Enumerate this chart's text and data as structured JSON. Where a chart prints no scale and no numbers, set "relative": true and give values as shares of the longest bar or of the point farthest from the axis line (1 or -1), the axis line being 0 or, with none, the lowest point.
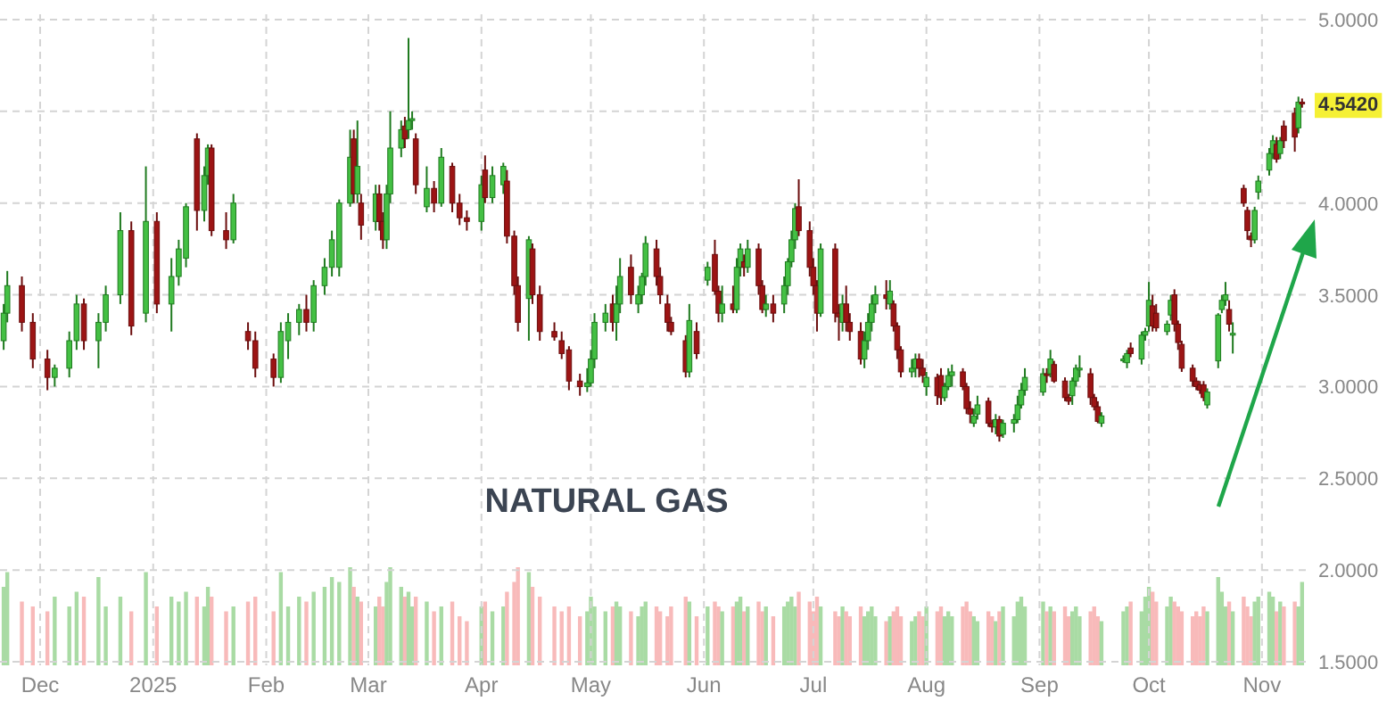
{
  "chart_data": [
    {
      "type": "candlestick",
      "x": [
        "2024-11-21",
        "2024-11-22",
        "2024-11-26",
        "2024-11-29",
        "2024-12-03",
        "2024-12-05",
        "2024-12-09",
        "2024-12-11",
        "2024-12-13",
        "2024-12-17",
        "2024-12-19",
        "2024-12-23",
        "2024-12-26",
        "2024-12-30",
        "2025-01-02",
        "2025-01-06",
        "2025-01-08",
        "2025-01-10",
        "2025-01-13",
        "2025-01-15",
        "2025-01-16",
        "2025-01-17",
        "2025-01-21",
        "2025-01-23",
        "2025-01-27",
        "2025-01-29",
        "2025-02-03",
        "2025-02-05",
        "2025-02-07",
        "2025-02-10",
        "2025-02-12",
        "2025-02-14",
        "2025-02-17",
        "2025-02-19",
        "2025-02-21",
        "2025-02-24",
        "2025-02-25",
        "2025-02-26",
        "2025-02-27",
        "2025-03-03",
        "2025-03-04",
        "2025-03-05",
        "2025-03-06",
        "2025-03-07",
        "2025-03-10",
        "2025-03-11",
        "2025-03-12",
        "2025-03-13",
        "2025-03-14",
        "2025-03-17",
        "2025-03-19",
        "2025-03-21",
        "2025-03-24",
        "2025-03-26",
        "2025-03-28",
        "2025-04-01",
        "2025-04-02",
        "2025-04-04",
        "2025-04-07",
        "2025-04-08",
        "2025-04-10",
        "2025-04-11",
        "2025-04-14",
        "2025-04-15",
        "2025-04-17",
        "2025-04-21",
        "2025-04-23",
        "2025-04-25",
        "2025-04-28",
        "2025-04-30",
        "2025-05-01",
        "2025-05-02",
        "2025-05-05",
        "2025-05-07",
        "2025-05-08",
        "2025-05-09",
        "2025-05-12",
        "2025-05-14",
        "2025-05-15",
        "2025-05-16",
        "2025-05-19",
        "2025-05-20",
        "2025-05-22",
        "2025-05-23",
        "2025-05-27",
        "2025-05-28",
        "2025-05-30",
        "2025-06-02",
        "2025-06-04",
        "2025-06-05",
        "2025-06-06",
        "2025-06-09",
        "2025-06-10",
        "2025-06-11",
        "2025-06-12",
        "2025-06-13",
        "2025-06-16",
        "2025-06-17",
        "2025-06-18",
        "2025-06-20",
        "2025-06-23",
        "2025-06-24",
        "2025-06-25",
        "2025-06-26",
        "2025-06-27",
        "2025-06-30",
        "2025-07-01",
        "2025-07-02",
        "2025-07-03",
        "2025-07-07",
        "2025-07-08",
        "2025-07-09",
        "2025-07-10",
        "2025-07-11",
        "2025-07-14",
        "2025-07-15",
        "2025-07-16",
        "2025-07-17",
        "2025-07-18",
        "2025-07-21",
        "2025-07-22",
        "2025-07-23",
        "2025-07-24",
        "2025-07-25",
        "2025-07-28",
        "2025-07-29",
        "2025-07-30",
        "2025-07-31",
        "2025-08-01",
        "2025-08-04",
        "2025-08-05",
        "2025-08-06",
        "2025-08-07",
        "2025-08-08",
        "2025-08-11",
        "2025-08-12",
        "2025-08-13",
        "2025-08-14",
        "2025-08-15",
        "2025-08-18",
        "2025-08-19",
        "2025-08-20",
        "2025-08-21",
        "2025-08-22",
        "2025-08-25",
        "2025-08-26",
        "2025-08-27",
        "2025-08-28",
        "2025-09-02",
        "2025-09-03",
        "2025-09-04",
        "2025-09-05",
        "2025-09-08",
        "2025-09-09",
        "2025-09-10",
        "2025-09-11",
        "2025-09-12",
        "2025-09-15",
        "2025-09-16",
        "2025-09-17",
        "2025-09-18",
        "2025-09-24",
        "2025-09-25",
        "2025-09-26",
        "2025-09-29",
        "2025-09-30",
        "2025-10-01",
        "2025-10-02",
        "2025-10-03",
        "2025-10-06",
        "2025-10-07",
        "2025-10-08",
        "2025-10-09",
        "2025-10-10",
        "2025-10-13",
        "2025-10-14",
        "2025-10-15",
        "2025-10-16",
        "2025-10-17",
        "2025-10-20",
        "2025-10-21",
        "2025-10-22",
        "2025-10-23",
        "2025-10-24",
        "2025-10-27",
        "2025-10-28",
        "2025-10-29",
        "2025-10-30",
        "2025-10-31",
        "2025-11-03",
        "2025-11-04",
        "2025-11-05",
        "2025-11-06",
        "2025-11-07",
        "2025-11-10",
        "2025-11-11",
        "2025-11-12"
      ],
      "ohlc": [
        [
          3.25,
          3.45,
          3.2,
          3.4
        ],
        [
          3.4,
          3.63,
          3.35,
          3.55
        ],
        [
          3.55,
          3.6,
          3.3,
          3.35
        ],
        [
          3.35,
          3.4,
          3.1,
          3.15
        ],
        [
          3.15,
          3.2,
          2.98,
          3.05
        ],
        [
          3.05,
          3.12,
          3.0,
          3.1
        ],
        [
          3.1,
          3.3,
          3.05,
          3.25
        ],
        [
          3.25,
          3.5,
          3.2,
          3.45
        ],
        [
          3.45,
          3.48,
          3.2,
          3.25
        ],
        [
          3.25,
          3.4,
          3.1,
          3.35
        ],
        [
          3.35,
          3.55,
          3.3,
          3.5
        ],
        [
          3.5,
          3.95,
          3.45,
          3.85
        ],
        [
          3.85,
          3.9,
          3.28,
          3.33
        ],
        [
          3.4,
          4.2,
          3.35,
          3.9
        ],
        [
          3.9,
          3.95,
          3.4,
          3.45
        ],
        [
          3.45,
          3.7,
          3.3,
          3.6
        ],
        [
          3.6,
          3.8,
          3.55,
          3.75
        ],
        [
          3.7,
          4.0,
          3.65,
          3.98
        ],
        [
          4.35,
          4.38,
          3.85,
          3.96
        ],
        [
          3.96,
          4.2,
          3.9,
          4.15
        ],
        [
          4.15,
          4.32,
          4.1,
          4.3
        ],
        [
          4.3,
          4.32,
          3.82,
          3.85
        ],
        [
          3.85,
          3.95,
          3.75,
          3.8
        ],
        [
          3.8,
          4.05,
          3.78,
          4.0
        ],
        [
          3.3,
          3.35,
          3.2,
          3.25
        ],
        [
          3.25,
          3.3,
          3.05,
          3.1
        ],
        [
          3.15,
          3.18,
          3.0,
          3.05
        ],
        [
          3.05,
          3.35,
          3.02,
          3.3
        ],
        [
          3.25,
          3.4,
          3.15,
          3.35
        ],
        [
          3.35,
          3.45,
          3.28,
          3.42
        ],
        [
          3.42,
          3.5,
          3.3,
          3.35
        ],
        [
          3.35,
          3.58,
          3.3,
          3.55
        ],
        [
          3.55,
          3.7,
          3.5,
          3.65
        ],
        [
          3.65,
          3.85,
          3.6,
          3.8
        ],
        [
          3.65,
          4.02,
          3.6,
          4.0
        ],
        [
          4.0,
          4.4,
          3.98,
          4.25
        ],
        [
          4.35,
          4.4,
          4.0,
          4.05
        ],
        [
          4.05,
          4.45,
          4.0,
          4.2
        ],
        [
          4.0,
          4.05,
          3.8,
          3.88
        ],
        [
          3.9,
          4.1,
          3.85,
          4.05
        ],
        [
          4.05,
          4.1,
          3.85,
          3.9
        ],
        [
          3.9,
          3.95,
          3.75,
          3.8
        ],
        [
          3.8,
          4.1,
          3.75,
          4.05
        ],
        [
          4.05,
          4.5,
          4.0,
          4.3
        ],
        [
          4.3,
          4.45,
          4.25,
          4.4
        ],
        [
          4.42,
          4.47,
          4.3,
          4.35
        ],
        [
          4.4,
          4.9,
          4.35,
          4.45
        ],
        [
          4.45,
          4.5,
          4.4,
          4.46
        ],
        [
          4.35,
          4.38,
          4.05,
          4.1
        ],
        [
          3.98,
          4.2,
          3.95,
          4.08
        ],
        [
          4.08,
          4.12,
          3.95,
          4.0
        ],
        [
          4.0,
          4.3,
          3.98,
          4.25
        ],
        [
          4.2,
          4.22,
          3.95,
          4.0
        ],
        [
          4.0,
          4.05,
          3.88,
          3.92
        ],
        [
          3.92,
          3.96,
          3.85,
          3.9
        ],
        [
          3.9,
          4.15,
          3.85,
          4.1
        ],
        [
          4.18,
          4.26,
          4.0,
          4.03
        ],
        [
          4.03,
          4.2,
          4.0,
          4.15
        ],
        [
          4.1,
          4.22,
          4.05,
          4.2
        ],
        [
          4.12,
          4.18,
          3.78,
          3.82
        ],
        [
          3.82,
          3.85,
          3.5,
          3.55
        ],
        [
          3.55,
          3.6,
          3.3,
          3.35
        ],
        [
          3.48,
          3.82,
          3.25,
          3.8
        ],
        [
          3.75,
          3.78,
          3.45,
          3.5
        ],
        [
          3.5,
          3.55,
          3.25,
          3.3
        ],
        [
          3.3,
          3.35,
          3.25,
          3.27
        ],
        [
          3.25,
          3.3,
          3.15,
          3.18
        ],
        [
          3.2,
          3.22,
          2.98,
          3.03
        ],
        [
          3.03,
          3.07,
          2.95,
          3.0
        ],
        [
          3.0,
          3.1,
          2.97,
          3.02
        ],
        [
          3.02,
          3.2,
          3.0,
          3.15
        ],
        [
          3.15,
          3.4,
          3.1,
          3.35
        ],
        [
          3.35,
          3.45,
          3.3,
          3.4
        ],
        [
          3.45,
          3.5,
          3.3,
          3.35
        ],
        [
          3.35,
          3.55,
          3.25,
          3.45
        ],
        [
          3.45,
          3.7,
          3.4,
          3.6
        ],
        [
          3.65,
          3.72,
          3.45,
          3.5
        ],
        [
          3.45,
          3.55,
          3.4,
          3.5
        ],
        [
          3.5,
          3.62,
          3.45,
          3.6
        ],
        [
          3.6,
          3.82,
          3.55,
          3.78
        ],
        [
          3.75,
          3.8,
          3.55,
          3.6
        ],
        [
          3.6,
          3.65,
          3.45,
          3.5
        ],
        [
          3.45,
          3.5,
          3.3,
          3.35
        ],
        [
          3.35,
          3.38,
          3.28,
          3.3
        ],
        [
          3.25,
          3.28,
          3.05,
          3.08
        ],
        [
          3.08,
          3.45,
          3.05,
          3.36
        ],
        [
          3.3,
          3.35,
          3.15,
          3.18
        ],
        [
          3.58,
          3.68,
          3.55,
          3.65
        ],
        [
          3.72,
          3.8,
          3.5,
          3.52
        ],
        [
          3.52,
          3.55,
          3.35,
          3.4
        ],
        [
          3.4,
          3.55,
          3.35,
          3.45
        ],
        [
          3.45,
          3.55,
          3.4,
          3.42
        ],
        [
          3.42,
          3.7,
          3.4,
          3.65
        ],
        [
          3.65,
          3.78,
          3.6,
          3.75
        ],
        [
          3.68,
          3.72,
          3.6,
          3.65
        ],
        [
          3.65,
          3.8,
          3.62,
          3.75
        ],
        [
          3.75,
          3.78,
          3.5,
          3.55
        ],
        [
          3.55,
          3.58,
          3.4,
          3.42
        ],
        [
          3.42,
          3.5,
          3.38,
          3.45
        ],
        [
          3.45,
          3.5,
          3.35,
          3.4
        ],
        [
          3.45,
          3.6,
          3.4,
          3.55
        ],
        [
          3.55,
          3.7,
          3.5,
          3.68
        ],
        [
          3.68,
          3.85,
          3.65,
          3.8
        ],
        [
          3.8,
          4.0,
          3.75,
          3.97
        ],
        [
          3.98,
          4.13,
          3.82,
          3.85
        ],
        [
          3.85,
          3.9,
          3.6,
          3.65
        ],
        [
          3.65,
          3.7,
          3.5,
          3.55
        ],
        [
          3.55,
          3.58,
          3.3,
          3.4
        ],
        [
          3.4,
          3.78,
          3.38,
          3.75
        ],
        [
          3.75,
          3.78,
          3.35,
          3.4
        ],
        [
          3.4,
          3.45,
          3.25,
          3.38
        ],
        [
          3.35,
          3.5,
          3.3,
          3.45
        ],
        [
          3.45,
          3.55,
          3.3,
          3.35
        ],
        [
          3.35,
          3.4,
          3.25,
          3.3
        ],
        [
          3.3,
          3.35,
          3.12,
          3.15
        ],
        [
          3.15,
          3.3,
          3.1,
          3.25
        ],
        [
          3.25,
          3.4,
          3.2,
          3.35
        ],
        [
          3.35,
          3.5,
          3.3,
          3.45
        ],
        [
          3.45,
          3.55,
          3.4,
          3.5
        ],
        [
          3.5,
          3.58,
          3.42,
          3.48
        ],
        [
          3.45,
          3.58,
          3.42,
          3.52
        ],
        [
          3.45,
          3.47,
          3.3,
          3.33
        ],
        [
          3.33,
          3.35,
          3.15,
          3.2
        ],
        [
          3.2,
          3.22,
          3.05,
          3.08
        ],
        [
          3.08,
          3.15,
          3.05,
          3.1
        ],
        [
          3.1,
          3.18,
          3.05,
          3.15
        ],
        [
          3.15,
          3.18,
          3.05,
          3.1
        ],
        [
          3.1,
          3.15,
          3.02,
          3.06
        ],
        [
          3.0,
          3.08,
          2.95,
          3.05
        ],
        [
          3.05,
          3.07,
          2.9,
          2.95
        ],
        [
          3.06,
          3.1,
          2.9,
          2.94
        ],
        [
          2.94,
          3.02,
          2.92,
          3.0
        ],
        [
          3.0,
          3.1,
          2.98,
          3.06
        ],
        [
          3.06,
          3.12,
          3.0,
          3.08
        ],
        [
          3.08,
          3.1,
          2.98,
          3.0
        ],
        [
          3.0,
          3.02,
          2.85,
          2.88
        ],
        [
          2.88,
          2.92,
          2.8,
          2.85
        ],
        [
          2.8,
          2.88,
          2.78,
          2.84
        ],
        [
          2.85,
          2.95,
          2.82,
          2.9
        ],
        [
          2.92,
          2.94,
          2.78,
          2.8
        ],
        [
          2.8,
          2.82,
          2.75,
          2.78
        ],
        [
          2.78,
          2.85,
          2.74,
          2.82
        ],
        [
          2.82,
          2.84,
          2.7,
          2.73
        ],
        [
          2.74,
          2.82,
          2.72,
          2.8
        ],
        [
          2.8,
          2.85,
          2.75,
          2.82
        ],
        [
          2.82,
          2.95,
          2.8,
          2.9
        ],
        [
          2.9,
          3.02,
          2.88,
          2.98
        ],
        [
          2.98,
          3.1,
          2.95,
          3.05
        ],
        [
          2.97,
          3.1,
          2.95,
          3.07
        ],
        [
          3.07,
          3.1,
          3.02,
          3.06
        ],
        [
          3.07,
          3.2,
          3.05,
          3.15
        ],
        [
          3.12,
          3.14,
          3.02,
          3.03
        ],
        [
          3.03,
          3.05,
          2.92,
          2.94
        ],
        [
          2.94,
          2.96,
          2.9,
          2.92
        ],
        [
          2.95,
          3.05,
          2.9,
          3.03
        ],
        [
          3.03,
          3.12,
          3.0,
          3.1
        ],
        [
          3.1,
          3.17,
          3.05,
          3.1
        ],
        [
          3.07,
          3.1,
          2.9,
          2.94
        ],
        [
          2.94,
          2.96,
          2.87,
          2.89
        ],
        [
          2.89,
          2.92,
          2.8,
          2.81
        ],
        [
          2.8,
          2.86,
          2.78,
          2.84
        ],
        [
          3.15,
          3.17,
          3.13,
          3.15
        ],
        [
          3.13,
          3.2,
          3.1,
          3.18
        ],
        [
          3.21,
          3.24,
          3.16,
          3.18
        ],
        [
          3.15,
          3.3,
          3.12,
          3.28
        ],
        [
          3.28,
          3.32,
          3.25,
          3.3
        ],
        [
          3.33,
          3.57,
          3.3,
          3.47
        ],
        [
          3.44,
          3.5,
          3.3,
          3.33
        ],
        [
          3.4,
          3.45,
          3.3,
          3.32
        ],
        [
          3.3,
          3.36,
          3.28,
          3.34
        ],
        [
          3.39,
          3.5,
          3.36,
          3.47
        ],
        [
          3.5,
          3.53,
          3.3,
          3.34
        ],
        [
          3.34,
          3.36,
          3.2,
          3.24
        ],
        [
          3.23,
          3.25,
          3.08,
          3.1
        ],
        [
          3.1,
          3.12,
          3.0,
          3.03
        ],
        [
          3.03,
          3.05,
          2.98,
          3.0
        ],
        [
          3.01,
          3.03,
          2.96,
          2.98
        ],
        [
          3.01,
          3.03,
          2.92,
          2.94
        ],
        [
          2.9,
          2.99,
          2.88,
          2.97
        ],
        [
          3.14,
          3.4,
          3.1,
          3.39
        ],
        [
          3.42,
          3.5,
          3.4,
          3.47
        ],
        [
          3.47,
          3.57,
          3.44,
          3.5
        ],
        [
          3.42,
          3.47,
          3.3,
          3.34
        ],
        [
          3.29,
          3.35,
          3.18,
          3.29
        ],
        [
          4.08,
          4.1,
          3.98,
          4.0
        ],
        [
          3.96,
          3.98,
          3.8,
          3.85
        ],
        [
          3.82,
          3.84,
          3.76,
          3.8
        ],
        [
          3.8,
          3.98,
          3.78,
          3.96
        ],
        [
          4.06,
          4.15,
          4.02,
          4.12
        ],
        [
          4.18,
          4.3,
          4.15,
          4.27
        ],
        [
          4.27,
          4.37,
          4.24,
          4.34
        ],
        [
          4.32,
          4.36,
          4.22,
          4.24
        ],
        [
          4.27,
          4.36,
          4.24,
          4.34
        ],
        [
          4.42,
          4.45,
          4.3,
          4.34
        ],
        [
          4.49,
          4.52,
          4.28,
          4.36
        ],
        [
          4.41,
          4.58,
          4.38,
          4.55
        ],
        [
          4.55,
          4.57,
          4.52,
          4.542
        ]
      ],
      "xlim": [
        "2024-11-20",
        "2025-11-14"
      ],
      "xticks": [
        {
          "value": "2024-12-01",
          "label": "Dec"
        },
        {
          "value": "2025-01-01",
          "label": "2025"
        },
        {
          "value": "2025-02-01",
          "label": "Feb"
        },
        {
          "value": "2025-03-01",
          "label": "Mar"
        },
        {
          "value": "2025-04-01",
          "label": "Apr"
        },
        {
          "value": "2025-05-01",
          "label": "May"
        },
        {
          "value": "2025-06-01",
          "label": "Jun"
        },
        {
          "value": "2025-07-01",
          "label": "Jul"
        },
        {
          "value": "2025-08-01",
          "label": "Aug"
        },
        {
          "value": "2025-09-01",
          "label": "Sep"
        },
        {
          "value": "2025-10-01",
          "label": "Oct"
        },
        {
          "value": "2025-11-01",
          "label": "Nov"
        }
      ],
      "ylim": [
        1.5,
        5.0
      ],
      "yticks": [
        {
          "value": 1.5,
          "label": "1.5000"
        },
        {
          "value": 2,
          "label": "2.0000"
        },
        {
          "value": 2.5,
          "label": "2.5000"
        },
        {
          "value": 3,
          "label": "3.0000"
        },
        {
          "value": 3.5,
          "label": "3.5000"
        },
        {
          "value": 4,
          "label": "4.0000"
        },
        {
          "value": 4.5,
          "label": null
        },
        {
          "value": 5,
          "label": "5.0000"
        }
      ],
      "grid": true,
      "annotations": [
        "NATURAL GAS",
        {
          "text": "4.5420",
          "x": "2025-11-12",
          "y": 4.542
        }
      ]
    },
    {
      "type": "bar",
      "relative": true,
      "x": [
        "2024-11-21",
        "2024-11-22",
        "2024-11-26",
        "2024-11-29",
        "2024-12-03",
        "2024-12-05",
        "2024-12-09",
        "2024-12-11",
        "2024-12-13",
        "2024-12-17",
        "2024-12-19",
        "2024-12-23",
        "2024-12-26",
        "2024-12-30",
        "2025-01-02",
        "2025-01-06",
        "2025-01-08",
        "2025-01-10",
        "2025-01-13",
        "2025-01-15",
        "2025-01-16",
        "2025-01-17",
        "2025-01-21",
        "2025-01-23",
        "2025-01-27",
        "2025-01-29",
        "2025-02-03",
        "2025-02-05",
        "2025-02-07",
        "2025-02-10",
        "2025-02-12",
        "2025-02-14",
        "2025-02-17",
        "2025-02-19",
        "2025-02-21",
        "2025-02-24",
        "2025-02-25",
        "2025-02-26",
        "2025-02-27",
        "2025-03-03",
        "2025-03-04",
        "2025-03-05",
        "2025-03-06",
        "2025-03-07",
        "2025-03-10",
        "2025-03-11",
        "2025-03-12",
        "2025-03-13",
        "2025-03-14",
        "2025-03-17",
        "2025-03-19",
        "2025-03-21",
        "2025-03-24",
        "2025-03-26",
        "2025-03-28",
        "2025-04-01",
        "2025-04-02",
        "2025-04-04",
        "2025-04-07",
        "2025-04-08",
        "2025-04-10",
        "2025-04-11",
        "2025-04-14",
        "2025-04-15",
        "2025-04-17",
        "2025-04-21",
        "2025-04-23",
        "2025-04-25",
        "2025-04-28",
        "2025-04-30",
        "2025-05-01",
        "2025-05-02",
        "2025-05-05",
        "2025-05-07",
        "2025-05-08",
        "2025-05-09",
        "2025-05-12",
        "2025-05-14",
        "2025-05-15",
        "2025-05-16",
        "2025-05-19",
        "2025-05-20",
        "2025-05-22",
        "2025-05-23",
        "2025-05-27",
        "2025-05-28",
        "2025-05-30",
        "2025-06-02",
        "2025-06-04",
        "2025-06-05",
        "2025-06-06",
        "2025-06-09",
        "2025-06-10",
        "2025-06-11",
        "2025-06-12",
        "2025-06-13",
        "2025-06-16",
        "2025-06-17",
        "2025-06-18",
        "2025-06-20",
        "2025-06-23",
        "2025-06-24",
        "2025-06-25",
        "2025-06-26",
        "2025-06-27",
        "2025-06-30",
        "2025-07-01",
        "2025-07-02",
        "2025-07-03",
        "2025-07-07",
        "2025-07-08",
        "2025-07-09",
        "2025-07-10",
        "2025-07-11",
        "2025-07-14",
        "2025-07-15",
        "2025-07-16",
        "2025-07-17",
        "2025-07-18",
        "2025-07-21",
        "2025-07-22",
        "2025-07-23",
        "2025-07-24",
        "2025-07-25",
        "2025-07-28",
        "2025-07-29",
        "2025-07-30",
        "2025-07-31",
        "2025-08-01",
        "2025-08-04",
        "2025-08-05",
        "2025-08-06",
        "2025-08-07",
        "2025-08-08",
        "2025-08-11",
        "2025-08-12",
        "2025-08-13",
        "2025-08-14",
        "2025-08-15",
        "2025-08-18",
        "2025-08-19",
        "2025-08-20",
        "2025-08-21",
        "2025-08-22",
        "2025-08-25",
        "2025-08-26",
        "2025-08-27",
        "2025-08-28",
        "2025-09-02",
        "2025-09-03",
        "2025-09-04",
        "2025-09-05",
        "2025-09-08",
        "2025-09-09",
        "2025-09-10",
        "2025-09-11",
        "2025-09-12",
        "2025-09-15",
        "2025-09-16",
        "2025-09-17",
        "2025-09-18",
        "2025-09-24",
        "2025-09-25",
        "2025-09-26",
        "2025-09-29",
        "2025-09-30",
        "2025-10-01",
        "2025-10-02",
        "2025-10-03",
        "2025-10-06",
        "2025-10-07",
        "2025-10-08",
        "2025-10-09",
        "2025-10-10",
        "2025-10-13",
        "2025-10-14",
        "2025-10-15",
        "2025-10-16",
        "2025-10-17",
        "2025-10-20",
        "2025-10-21",
        "2025-10-22",
        "2025-10-23",
        "2025-10-24",
        "2025-10-27",
        "2025-10-28",
        "2025-10-29",
        "2025-10-30",
        "2025-10-31",
        "2025-11-03",
        "2025-11-04",
        "2025-11-05",
        "2025-11-06",
        "2025-11-07",
        "2025-11-10",
        "2025-11-11",
        "2025-11-12"
      ],
      "xlim": [
        "2024-11-20",
        "2025-11-14"
      ],
      "values": [
        0.8,
        0.95,
        0.65,
        0.6,
        0.55,
        0.7,
        0.6,
        0.75,
        0.7,
        0.9,
        0.6,
        0.7,
        0.55,
        0.95,
        0.6,
        0.7,
        0.65,
        0.75,
        0.7,
        0.6,
        0.8,
        0.7,
        0.55,
        0.6,
        0.65,
        0.7,
        0.55,
        0.95,
        0.6,
        0.7,
        0.65,
        0.75,
        0.8,
        0.9,
        0.85,
        1.0,
        0.8,
        0.7,
        0.65,
        0.6,
        0.7,
        0.6,
        0.85,
        1.0,
        0.8,
        0.7,
        0.75,
        0.6,
        0.7,
        0.65,
        0.55,
        0.6,
        0.65,
        0.5,
        0.45,
        0.6,
        0.65,
        0.55,
        0.6,
        0.75,
        0.85,
        1.0,
        0.95,
        0.8,
        0.7,
        0.6,
        0.55,
        0.6,
        0.5,
        0.55,
        0.7,
        0.6,
        0.55,
        0.6,
        0.65,
        0.6,
        0.55,
        0.5,
        0.6,
        0.65,
        0.6,
        0.55,
        0.5,
        0.6,
        0.7,
        0.65,
        0.5,
        0.6,
        0.65,
        0.6,
        0.55,
        0.6,
        0.65,
        0.7,
        0.55,
        0.6,
        0.65,
        0.55,
        0.6,
        0.5,
        0.6,
        0.65,
        0.7,
        0.6,
        0.75,
        0.65,
        0.55,
        0.7,
        0.6,
        0.55,
        0.5,
        0.6,
        0.55,
        0.5,
        0.6,
        0.5,
        0.55,
        0.6,
        0.5,
        0.45,
        0.5,
        0.55,
        0.6,
        0.5,
        0.45,
        0.5,
        0.55,
        0.5,
        0.6,
        0.55,
        0.6,
        0.5,
        0.55,
        0.5,
        0.6,
        0.65,
        0.55,
        0.5,
        0.45,
        0.55,
        0.5,
        0.45,
        0.55,
        0.6,
        0.5,
        0.65,
        0.7,
        0.6,
        0.65,
        0.55,
        0.6,
        0.55,
        0.6,
        0.5,
        0.55,
        0.6,
        0.5,
        0.55,
        0.6,
        0.5,
        0.45,
        0.55,
        0.6,
        0.65,
        0.55,
        0.7,
        0.8,
        0.75,
        0.65,
        0.6,
        0.7,
        0.65,
        0.6,
        0.55,
        0.5,
        0.55,
        0.5,
        0.6,
        0.55,
        0.9,
        0.75,
        0.6,
        0.65,
        0.55,
        0.7,
        0.6,
        0.5,
        0.65,
        0.7,
        0.75,
        0.7,
        0.55,
        0.65,
        0.6,
        0.65,
        0.6,
        0.85
      ],
      "colors": [
        "#a9dba4",
        "#a9dba4",
        "#f8baba",
        "#f8baba",
        "#f8baba",
        "#a9dba4",
        "#a9dba4",
        "#a9dba4",
        "#f8baba",
        "#a9dba4",
        "#a9dba4",
        "#a9dba4",
        "#f8baba",
        "#a9dba4",
        "#f8baba",
        "#a9dba4",
        "#a9dba4",
        "#a9dba4",
        "#f8baba",
        "#a9dba4",
        "#a9dba4",
        "#f8baba",
        "#f8baba",
        "#a9dba4",
        "#f8baba",
        "#f8baba",
        "#f8baba",
        "#a9dba4",
        "#a9dba4",
        "#a9dba4",
        "#f8baba",
        "#a9dba4",
        "#a9dba4",
        "#a9dba4",
        "#a9dba4",
        "#a9dba4",
        "#f8baba",
        "#a9dba4",
        "#f8baba",
        "#a9dba4",
        "#f8baba",
        "#f8baba",
        "#a9dba4",
        "#a9dba4",
        "#a9dba4",
        "#f8baba",
        "#a9dba4",
        "#a9dba4",
        "#f8baba",
        "#a9dba4",
        "#f8baba",
        "#a9dba4",
        "#f8baba",
        "#f8baba",
        "#f8baba",
        "#a9dba4",
        "#f8baba",
        "#a9dba4",
        "#a9dba4",
        "#f8baba",
        "#f8baba",
        "#f8baba",
        "#a9dba4",
        "#f8baba",
        "#f8baba",
        "#f8baba",
        "#f8baba",
        "#f8baba",
        "#f8baba",
        "#a9dba4",
        "#a9dba4",
        "#a9dba4",
        "#a9dba4",
        "#f8baba",
        "#a9dba4",
        "#a9dba4",
        "#f8baba",
        "#a9dba4",
        "#a9dba4",
        "#a9dba4",
        "#f8baba",
        "#f8baba",
        "#f8baba",
        "#f8baba",
        "#f8baba",
        "#a9dba4",
        "#f8baba",
        "#a9dba4",
        "#f8baba",
        "#f8baba",
        "#a9dba4",
        "#f8baba",
        "#a9dba4",
        "#a9dba4",
        "#f8baba",
        "#a9dba4",
        "#f8baba",
        "#f8baba",
        "#a9dba4",
        "#f8baba",
        "#a9dba4",
        "#a9dba4",
        "#a9dba4",
        "#a9dba4",
        "#f8baba",
        "#f8baba",
        "#f8baba",
        "#f8baba",
        "#a9dba4",
        "#f8baba",
        "#f8baba",
        "#a9dba4",
        "#f8baba",
        "#f8baba",
        "#f8baba",
        "#a9dba4",
        "#a9dba4",
        "#a9dba4",
        "#a9dba4",
        "#f8baba",
        "#a9dba4",
        "#f8baba",
        "#f8baba",
        "#f8baba",
        "#a9dba4",
        "#a9dba4",
        "#f8baba",
        "#f8baba",
        "#a9dba4",
        "#f8baba",
        "#f8baba",
        "#a9dba4",
        "#a9dba4",
        "#a9dba4",
        "#f8baba",
        "#f8baba",
        "#f8baba",
        "#a9dba4",
        "#a9dba4",
        "#f8baba",
        "#f8baba",
        "#a9dba4",
        "#f8baba",
        "#a9dba4",
        "#a9dba4",
        "#a9dba4",
        "#a9dba4",
        "#a9dba4",
        "#a9dba4",
        "#f8baba",
        "#a9dba4",
        "#f8baba",
        "#f8baba",
        "#f8baba",
        "#a9dba4",
        "#a9dba4",
        "#a9dba4",
        "#f8baba",
        "#f8baba",
        "#f8baba",
        "#a9dba4",
        "#a9dba4",
        "#a9dba4",
        "#f8baba",
        "#a9dba4",
        "#a9dba4",
        "#a9dba4",
        "#f8baba",
        "#f8baba",
        "#a9dba4",
        "#a9dba4",
        "#f8baba",
        "#f8baba",
        "#f8baba",
        "#f8baba",
        "#f8baba",
        "#f8baba",
        "#f8baba",
        "#a9dba4",
        "#a9dba4",
        "#a9dba4",
        "#a9dba4",
        "#f8baba",
        "#a9dba4",
        "#f8baba",
        "#f8baba",
        "#f8baba",
        "#a9dba4",
        "#a9dba4",
        "#a9dba4",
        "#a9dba4",
        "#f8baba",
        "#a9dba4",
        "#f8baba",
        "#f8baba",
        "#a9dba4",
        "#a9dba4"
      ]
    }
  ]
}
